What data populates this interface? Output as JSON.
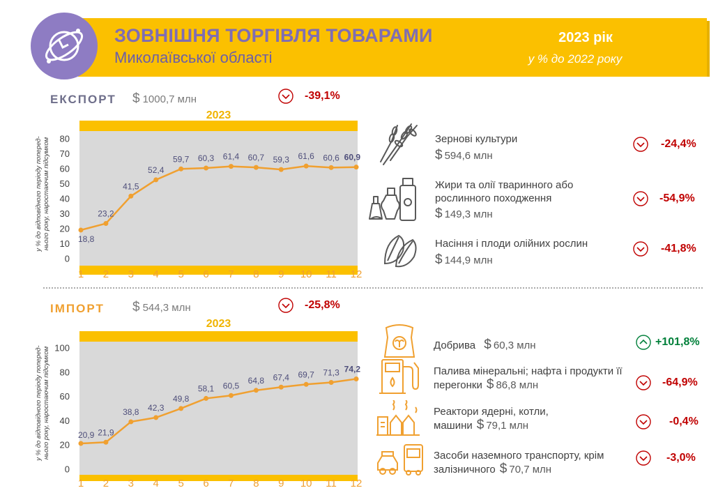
{
  "header": {
    "title": "ЗОВНІШНЯ ТОРГІВЛЯ ТОВАРАМИ",
    "subtitle": "Миколаївської області",
    "year": "2023 рік",
    "note": "у % до 2022 року"
  },
  "colors": {
    "accent": "#fbc000",
    "purple": "#7f6db3",
    "line": "#f0a030",
    "negative": "#c00000",
    "positive": "#00803a",
    "plot_bg": "#d9d9d9"
  },
  "export": {
    "label": "ЕКСПОРТ",
    "currency": "$",
    "total": "1000,7 млн",
    "change": "-39,1%",
    "direction": "down",
    "categories": [
      {
        "name": "Зернові культури",
        "amount": "594,6 млн",
        "change": "-24,4%",
        "direction": "down",
        "icon": "wheat-icon"
      },
      {
        "name": "Жири та олії тваринного або рослинного походження",
        "amount": "149,3 млн",
        "change": "-54,9%",
        "direction": "down",
        "icon": "oil-bottles-icon"
      },
      {
        "name": "Насіння і плоди олійних рослин",
        "amount": "144,9 млн",
        "change": "-41,8%",
        "direction": "down",
        "icon": "sunflower-seeds-icon"
      }
    ]
  },
  "import": {
    "label": "ІМПОРТ",
    "currency": "$",
    "total": "544,3 млн",
    "change": "-25,8%",
    "direction": "down",
    "categories": [
      {
        "name": "Добрива",
        "amount": "60,3 млн",
        "change": "+101,8%",
        "direction": "up",
        "icon": "fertilizer-bag-icon"
      },
      {
        "name": "Палива мінеральні; нафта і продукти її перегонки",
        "amount": "86,8 млн",
        "change": "-64,9%",
        "direction": "down",
        "icon": "fuel-pump-icon"
      },
      {
        "name": "Реактори ядерні, котли, машини",
        "amount": "79,1 млн",
        "change": "-0,4%",
        "direction": "down",
        "icon": "factory-icon"
      },
      {
        "name": "Засоби наземного транспорту, крім залізничного",
        "amount": "70,7 млн",
        "change": "-3,0%",
        "direction": "down",
        "icon": "vehicles-icon"
      }
    ]
  },
  "chart_data": [
    {
      "type": "line",
      "title": "2023",
      "ylabel": "у % до відповідного періоду попереднього року, наростаючим підсумком",
      "x": [
        1,
        2,
        3,
        4,
        5,
        6,
        7,
        8,
        9,
        10,
        11,
        12
      ],
      "values": [
        18.8,
        23.2,
        41.5,
        52.4,
        59.7,
        60.3,
        61.4,
        60.7,
        59.3,
        61.6,
        60.6,
        60.9
      ],
      "data_labels": [
        "18,8",
        "23,2",
        "41,5",
        "52,4",
        "59,7",
        "60,3",
        "61,4",
        "60,7",
        "59,3",
        "61,6",
        "60,6",
        "60,9"
      ],
      "yticks": [
        0,
        10,
        20,
        30,
        40,
        50,
        60,
        70,
        80
      ],
      "ylim": [
        -5,
        85
      ],
      "grid": false
    },
    {
      "type": "line",
      "title": "2023",
      "ylabel": "у % до відповідного періоду попереднього року, наростаючим підсумком",
      "x": [
        1,
        2,
        3,
        4,
        5,
        6,
        7,
        8,
        9,
        10,
        11,
        12
      ],
      "values": [
        20.9,
        21.9,
        38.8,
        42.3,
        49.8,
        58.1,
        60.5,
        64.8,
        67.4,
        69.7,
        71.3,
        74.2
      ],
      "data_labels": [
        "20,9",
        "21,9",
        "38,8",
        "42,3",
        "49,8",
        "58,1",
        "60,5",
        "64,8",
        "67,4",
        "69,7",
        "71,3",
        "74,2"
      ],
      "yticks": [
        0,
        20,
        40,
        60,
        80,
        100
      ],
      "ylim": [
        -5,
        105
      ],
      "grid": false
    }
  ]
}
